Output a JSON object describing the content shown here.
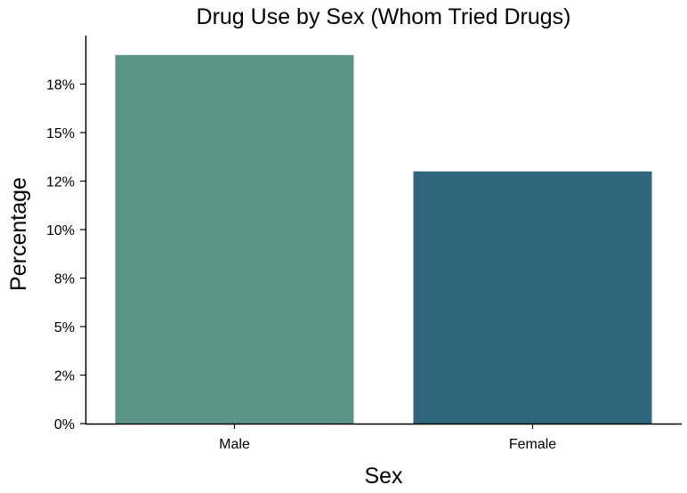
{
  "chart_data": {
    "type": "bar",
    "title": "Drug Use by Sex (Whom Tried Drugs)",
    "xlabel": "Sex",
    "ylabel": "Percentage",
    "categories": [
      "Male",
      "Female"
    ],
    "values": [
      19.0,
      13.0
    ],
    "ylim": [
      0,
      20.0
    ],
    "yticks": [
      {
        "value": 0.0,
        "label": "0%"
      },
      {
        "value": 2.5,
        "label": "2%"
      },
      {
        "value": 5.0,
        "label": "5%"
      },
      {
        "value": 7.5,
        "label": "8%"
      },
      {
        "value": 10.0,
        "label": "10%"
      },
      {
        "value": 12.5,
        "label": "12%"
      },
      {
        "value": 15.0,
        "label": "15%"
      },
      {
        "value": 17.5,
        "label": "18%"
      }
    ],
    "colors": [
      "#5b958a",
      "#2e677b"
    ],
    "grid": false,
    "legend": "none"
  }
}
